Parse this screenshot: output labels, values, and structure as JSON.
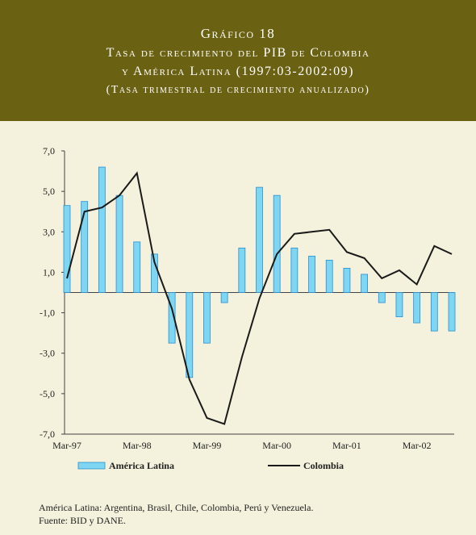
{
  "chart_data": {
    "type": "bar",
    "title": "Gráfico 18",
    "subtitle": [
      "Tasa de crecimiento del PIB de Colombia",
      "y América Latina (1997:03-2002:09)",
      "(Tasa trimestral de crecimiento anualizado)"
    ],
    "categories": [
      "Mar-97",
      null,
      null,
      null,
      "Mar-98",
      null,
      null,
      null,
      "Mar-99",
      null,
      null,
      null,
      "Mar-00",
      null,
      null,
      null,
      "Mar-01",
      null,
      null,
      null,
      "Mar-02",
      null,
      null
    ],
    "series": [
      {
        "name": "América Latina",
        "type": "bar",
        "color": "#7fd6f2",
        "values": [
          4.3,
          4.5,
          6.2,
          4.8,
          2.5,
          1.9,
          -2.5,
          -4.2,
          -2.5,
          -0.5,
          2.2,
          5.2,
          4.8,
          2.2,
          1.8,
          1.6,
          1.2,
          0.9,
          -0.5,
          -1.2,
          -1.5,
          -1.9,
          -1.9
        ]
      },
      {
        "name": "Colombia",
        "type": "line",
        "color": "#1a1a1a",
        "values": [
          0.7,
          4.0,
          4.2,
          4.8,
          5.9,
          1.5,
          -0.8,
          -4.3,
          -6.2,
          -6.5,
          -3.2,
          -0.3,
          1.9,
          2.9,
          3.0,
          3.1,
          2.0,
          1.7,
          0.7,
          1.1,
          0.4,
          2.3,
          1.9
        ]
      }
    ],
    "ylim": [
      -7,
      7
    ],
    "yticks": [
      {
        "value": -7,
        "label": "-7,0"
      },
      {
        "value": -5,
        "label": "-5,0"
      },
      {
        "value": -3,
        "label": "-3,0"
      },
      {
        "value": -1,
        "label": "-1,0"
      },
      {
        "value": 1,
        "label": "1,0"
      },
      {
        "value": 3,
        "label": "3,0"
      },
      {
        "value": 5,
        "label": "5,0"
      },
      {
        "value": 7,
        "label": "7,0"
      }
    ],
    "notes": [
      "América Latina: Argentina, Brasil, Chile, Colombia, Perú y Venezuela.",
      "Fuente: BID y DANE."
    ]
  }
}
